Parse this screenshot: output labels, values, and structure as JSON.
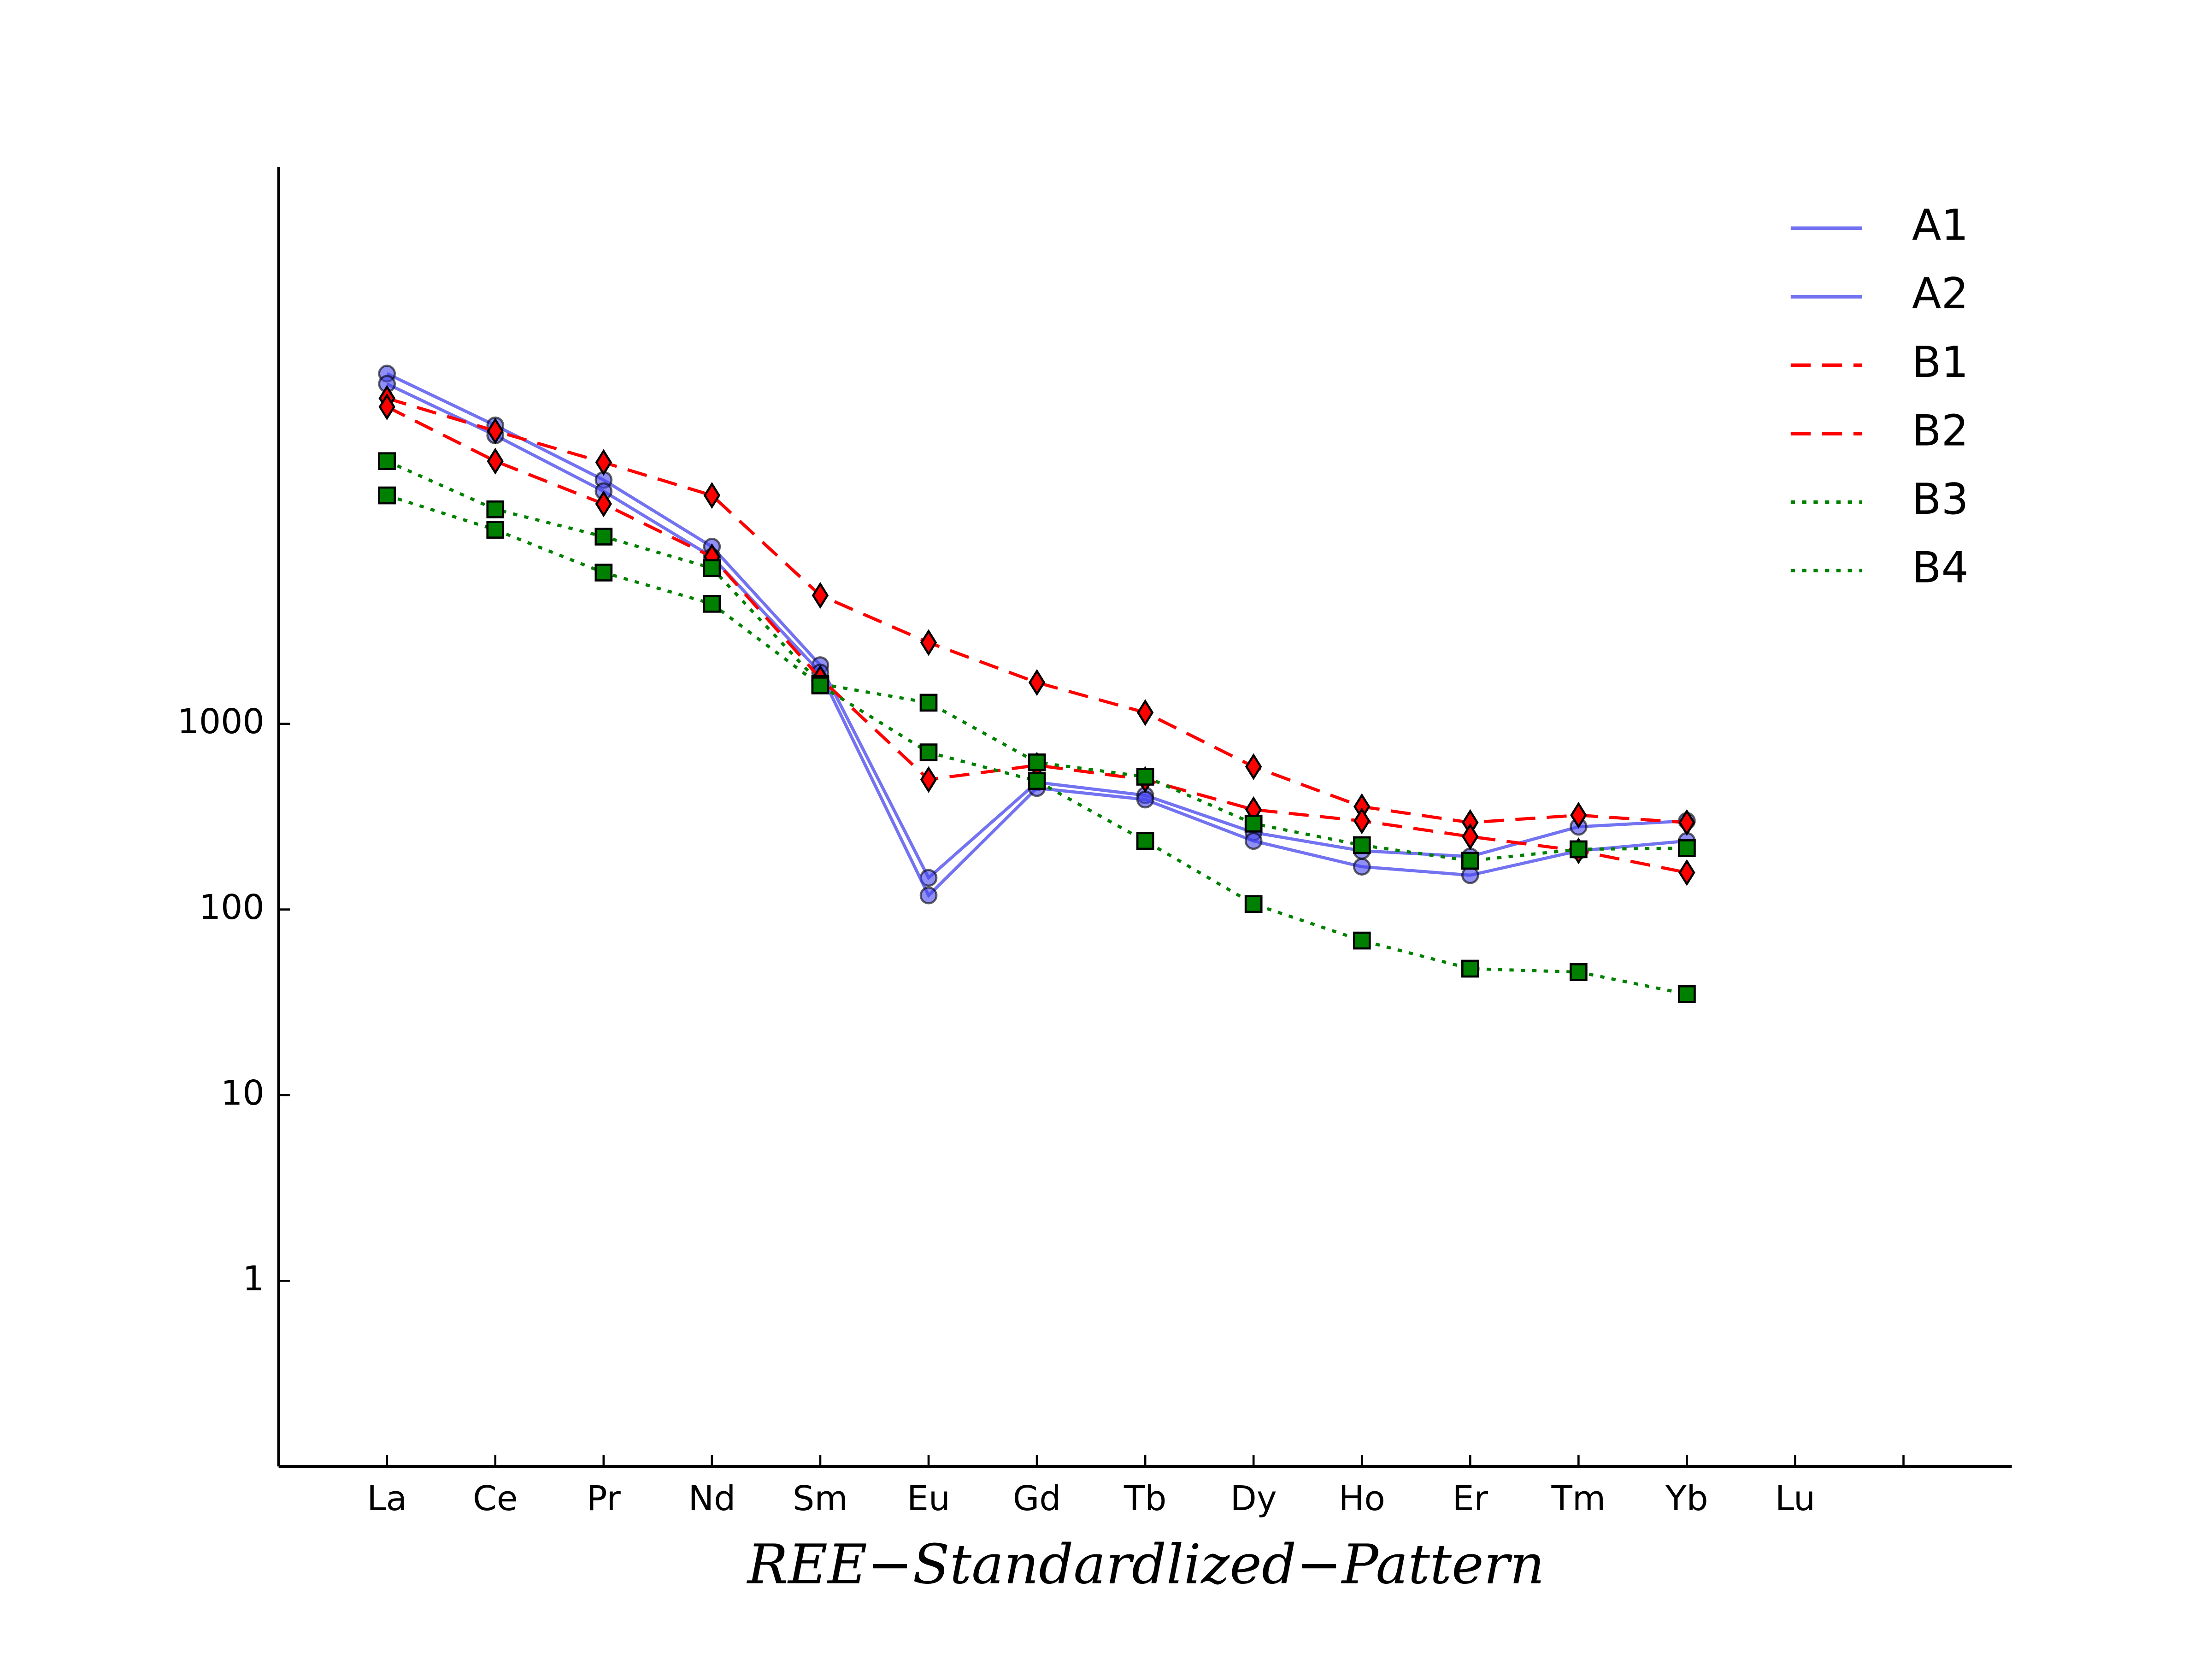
{
  "chart_data": {
    "type": "line",
    "xlabel": "REE−Standardlized−Pattern",
    "categories": [
      "La",
      "Ce",
      "Pr",
      "Nd",
      "Sm",
      "Eu",
      "Gd",
      "Tb",
      "Dy",
      "Ho",
      "Er",
      "Tm",
      "Yb",
      "Lu",
      null
    ],
    "ylim": [
      0.1,
      1000000
    ],
    "yticks": [
      1,
      10,
      100,
      1000
    ],
    "log_scale": true,
    "grid": false,
    "legend": "upper right",
    "series": [
      {
        "name": "A1",
        "color": "#4444ee",
        "line": "solid",
        "marker": "circle",
        "values": [
          77000,
          40500,
          20600,
          9000,
          2070,
          148,
          484,
          412,
          260,
          207,
          193,
          279,
          300,
          null,
          null
        ]
      },
      {
        "name": "A2",
        "color": "#4444ee",
        "line": "solid",
        "marker": "circle",
        "values": [
          67800,
          35800,
          17900,
          7940,
          1890,
          119,
          451,
          391,
          234,
          170,
          153,
          207,
          234,
          null,
          null
        ]
      },
      {
        "name": "B1",
        "color": "#ff0000",
        "line": "dashed",
        "marker": "diamond",
        "values": [
          56700,
          37800,
          25600,
          17000,
          4920,
          2740,
          1670,
          1150,
          588,
          358,
          294,
          322,
          294,
          null,
          null
        ]
      },
      {
        "name": "B2",
        "color": "#ff0000",
        "line": "dashed",
        "marker": "diamond",
        "values": [
          51000,
          26000,
          15300,
          7940,
          1760,
          501,
          598,
          501,
          345,
          300,
          247,
          207,
          158,
          null,
          null
        ]
      },
      {
        "name": "B3",
        "color": "#008000",
        "line": "dotted",
        "marker": "square",
        "values": [
          26000,
          14300,
          10200,
          6900,
          1640,
          1300,
          620,
          519,
          290,
          222,
          183,
          211,
          214,
          null,
          null
        ]
      },
      {
        "name": "B4",
        "color": "#008000",
        "line": "dotted",
        "marker": "square",
        "values": [
          17000,
          11100,
          6530,
          4430,
          1610,
          702,
          492,
          234,
          107,
          68,
          48,
          46,
          35,
          null,
          null
        ]
      }
    ]
  }
}
